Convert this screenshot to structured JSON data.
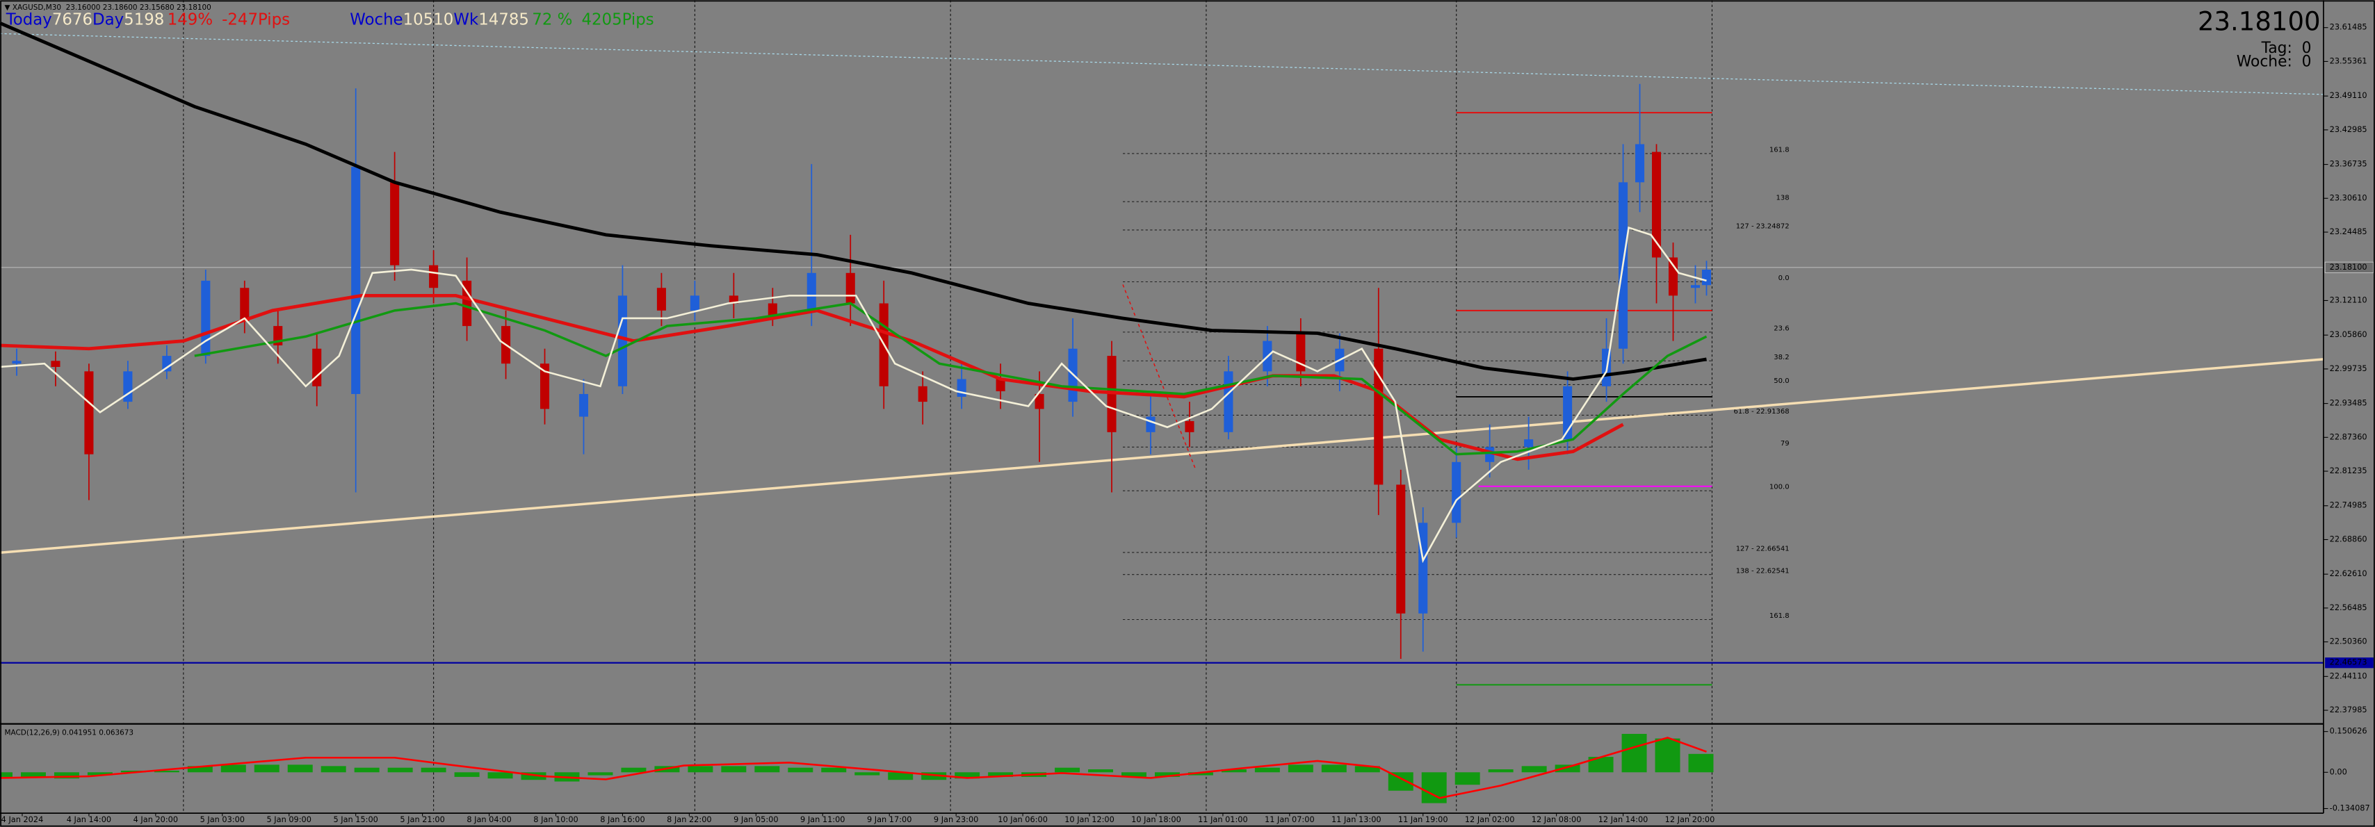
{
  "header": {
    "symbol_info": "▼ XAGUSD,M30  23.16000 23.18600 23.15680 23.18100",
    "today_label": "Today",
    "today_value": "7676",
    "day_label": "Day",
    "day_value": "5198",
    "day_pct": "149%",
    "day_pips": "-247Pips",
    "week_label": "Woche",
    "week_value": "10510",
    "wk_label": "Wk",
    "wk_value": "14785",
    "wk_pct": "72 %",
    "wk_pips": "4205Pips"
  },
  "info_box": {
    "price": "23.18100",
    "day": "Tag:  0",
    "week": "Woche:  0"
  },
  "chart_data": {
    "type": "candlestick",
    "xlim": [
      0,
      418
    ],
    "ylim": [
      22.358,
      23.659
    ],
    "xticks": [
      {
        "value": 4,
        "label": "4 Jan 2024"
      },
      {
        "value": 16,
        "label": "4 Jan 14:00"
      },
      {
        "value": 28,
        "label": "4 Jan 20:00"
      },
      {
        "value": 40,
        "label": "5 Jan 03:00"
      },
      {
        "value": 52,
        "label": "5 Jan 09:00"
      },
      {
        "value": 64,
        "label": "5 Jan 15:00"
      },
      {
        "value": 76,
        "label": "5 Jan 21:00"
      },
      {
        "value": 88,
        "label": "8 Jan 04:00"
      },
      {
        "value": 100,
        "label": "8 Jan 10:00"
      },
      {
        "value": 112,
        "label": "8 Jan 16:00"
      },
      {
        "value": 124,
        "label": "8 Jan 22:00"
      },
      {
        "value": 136,
        "label": "9 Jan 05:00"
      },
      {
        "value": 148,
        "label": "9 Jan 11:00"
      },
      {
        "value": 160,
        "label": "9 Jan 17:00"
      },
      {
        "value": 172,
        "label": "9 Jan 23:00"
      },
      {
        "value": 184,
        "label": "10 Jan 06:00"
      },
      {
        "value": 196,
        "label": "10 Jan 12:00"
      },
      {
        "value": 208,
        "label": "10 Jan 18:00"
      },
      {
        "value": 220,
        "label": "11 Jan 01:00"
      },
      {
        "value": 232,
        "label": "11 Jan 07:00"
      },
      {
        "value": 244,
        "label": "11 Jan 13:00"
      },
      {
        "value": 256,
        "label": "11 Jan 19:00"
      },
      {
        "value": 268,
        "label": "12 Jan 02:00"
      },
      {
        "value": 280,
        "label": "12 Jan 08:00"
      },
      {
        "value": 292,
        "label": "12 Jan 14:00"
      },
      {
        "value": 304,
        "label": "12 Jan 20:00"
      }
    ],
    "yticks": [
      23.61485,
      23.55361,
      {
        "value": 23.4911,
        "label": "23.49110"
      },
      23.42985,
      23.36735,
      {
        "value": 23.3061,
        "label": "23.30610"
      },
      23.24485,
      {
        "value": 23.1211,
        "label": "23.12110"
      },
      {
        "value": 23.0586,
        "label": "23.05860"
      },
      22.99735,
      22.93485,
      {
        "value": 22.8736,
        "label": "22.87360"
      },
      22.81235,
      22.74985,
      {
        "value": 22.6886,
        "label": "22.68860"
      },
      {
        "value": 22.6261,
        "label": "22.62610"
      },
      22.56485,
      {
        "value": 22.5036,
        "label": "22.50360"
      },
      {
        "value": 22.4411,
        "label": "22.44110"
      },
      22.37985
    ],
    "vgrid": [
      33,
      78,
      125,
      171,
      217,
      262,
      308
    ],
    "up_color": "#1f5fd8",
    "down_color": "#c00000",
    "x": [
      3,
      10,
      16,
      23,
      30,
      37,
      44,
      50,
      57,
      64,
      71,
      78,
      84,
      91,
      98,
      105,
      112,
      119,
      125,
      132,
      139,
      146,
      153,
      159,
      166,
      173,
      180,
      187,
      193,
      200,
      207,
      214,
      221,
      228,
      234,
      241,
      248,
      252,
      256,
      262,
      268,
      275,
      282,
      289,
      292,
      295,
      298,
      301,
      305,
      307
    ],
    "open": [
      23.007,
      23.012,
      22.993,
      22.938,
      22.993,
      23.021,
      23.144,
      23.075,
      23.034,
      22.952,
      23.335,
      23.185,
      23.157,
      23.075,
      23.007,
      22.911,
      22.966,
      23.144,
      23.103,
      23.13,
      23.116,
      23.103,
      23.171,
      23.116,
      22.966,
      22.947,
      22.979,
      22.952,
      22.938,
      23.021,
      22.883,
      22.903,
      22.883,
      22.993,
      23.062,
      22.993,
      23.034,
      22.788,
      22.555,
      22.719,
      22.829,
      22.856,
      22.87,
      22.966,
      23.034,
      23.335,
      23.39,
      23.199,
      23.144,
      23.149
    ],
    "high": [
      23.034,
      23.029,
      23.007,
      23.012,
      23.04,
      23.177,
      23.157,
      23.103,
      23.062,
      23.505,
      23.39,
      23.212,
      23.199,
      23.103,
      23.034,
      22.979,
      23.185,
      23.171,
      23.157,
      23.171,
      23.144,
      23.368,
      23.24,
      23.157,
      22.993,
      23.007,
      23.007,
      22.993,
      23.089,
      23.048,
      22.952,
      22.938,
      23.021,
      23.075,
      23.089,
      23.062,
      23.144,
      22.815,
      22.747,
      22.856,
      22.897,
      22.911,
      22.993,
      23.089,
      23.404,
      23.513,
      23.404,
      23.226,
      23.185,
      23.193
    ],
    "low": [
      22.985,
      22.966,
      22.76,
      22.925,
      22.979,
      23.007,
      23.062,
      23.007,
      22.93,
      22.774,
      23.157,
      23.116,
      23.048,
      22.979,
      22.897,
      22.843,
      22.952,
      23.075,
      23.084,
      23.089,
      23.075,
      23.075,
      23.075,
      22.925,
      22.897,
      22.925,
      22.925,
      22.829,
      22.911,
      22.774,
      22.843,
      22.856,
      22.87,
      22.966,
      22.966,
      22.957,
      22.733,
      22.473,
      22.486,
      22.692,
      22.801,
      22.815,
      22.843,
      22.938,
      23.007,
      23.281,
      23.116,
      23.048,
      23.116,
      23.13
    ],
    "close": [
      23.012,
      23.001,
      22.843,
      22.993,
      23.021,
      23.157,
      23.084,
      23.04,
      22.966,
      23.363,
      23.185,
      23.144,
      23.075,
      23.007,
      22.925,
      22.952,
      23.13,
      23.103,
      23.13,
      23.116,
      23.089,
      23.171,
      23.116,
      22.966,
      22.938,
      22.979,
      22.957,
      22.925,
      23.034,
      22.883,
      22.911,
      22.883,
      22.993,
      23.048,
      22.993,
      23.034,
      22.788,
      22.555,
      22.719,
      22.829,
      22.856,
      22.87,
      22.966,
      23.034,
      23.335,
      23.404,
      23.199,
      23.13,
      23.149,
      23.177
    ],
    "lines": [
      {
        "color": "#000000",
        "width": 2.2,
        "x": [
          0,
          16,
          35,
          55,
          71,
          90,
          109,
          128,
          147,
          164,
          185,
          202,
          218,
          237,
          251,
          267,
          283,
          294,
          307
        ],
        "values": [
          23.623,
          23.554,
          23.472,
          23.404,
          23.335,
          23.281,
          23.24,
          23.22,
          23.204,
          23.171,
          23.116,
          23.089,
          23.067,
          23.062,
          23.034,
          22.999,
          22.979,
          22.993,
          23.015
        ]
      },
      {
        "color": "#e01010",
        "width": 2.2,
        "x": [
          0,
          16,
          33,
          49,
          65,
          82,
          98,
          114,
          131,
          147,
          164,
          180,
          196,
          213,
          229,
          240,
          248,
          259,
          273,
          283,
          292
        ],
        "values": [
          23.04,
          23.034,
          23.048,
          23.103,
          23.13,
          23.13,
          23.089,
          23.048,
          23.075,
          23.103,
          23.048,
          22.979,
          22.957,
          22.947,
          22.985,
          22.985,
          22.957,
          22.87,
          22.834,
          22.848,
          22.897
        ]
      },
      {
        "color": "#119911",
        "width": 1.6,
        "x": [
          35,
          55,
          71,
          82,
          98,
          109,
          120,
          136,
          153,
          169,
          191,
          213,
          229,
          245,
          262,
          273,
          283,
          292,
          300,
          307
        ],
        "values": [
          23.021,
          23.056,
          23.103,
          23.116,
          23.067,
          23.021,
          23.075,
          23.089,
          23.116,
          23.007,
          22.966,
          22.952,
          22.985,
          22.979,
          22.843,
          22.848,
          22.87,
          22.952,
          23.021,
          23.056
        ]
      },
      {
        "color": "#f4f0d8",
        "width": 1.2,
        "x": [
          0,
          8,
          18,
          27,
          37,
          44,
          55,
          61,
          67,
          74,
          82,
          90,
          98,
          108,
          112,
          120,
          131,
          142,
          154,
          161,
          172,
          185,
          191,
          199,
          210,
          218,
          229,
          237,
          245,
          251,
          256,
          262,
          270,
          281,
          289,
          293,
          297,
          302,
          307
        ],
        "values": [
          23.001,
          23.007,
          22.919,
          22.979,
          23.048,
          23.089,
          22.966,
          23.021,
          23.171,
          23.177,
          23.166,
          23.048,
          22.993,
          22.966,
          23.089,
          23.089,
          23.116,
          23.13,
          23.13,
          23.007,
          22.957,
          22.93,
          23.007,
          22.93,
          22.892,
          22.925,
          23.029,
          22.993,
          23.034,
          22.938,
          22.651,
          22.76,
          22.829,
          22.87,
          22.993,
          23.253,
          23.24,
          23.171,
          23.157
        ]
      }
    ],
    "trendlines": [
      {
        "color": "#f5deb3",
        "width": 1.6,
        "dash": "none",
        "x": [
          0,
          418
        ],
        "values": [
          22.665,
          23.015
        ]
      },
      {
        "color": "#a8d8e8",
        "width": 0.6,
        "dash": "1.5 1.5",
        "x": [
          0,
          418
        ],
        "values": [
          23.604,
          23.494
        ]
      },
      {
        "color": "#e01010",
        "width": 0.7,
        "dash": "2 2",
        "x": [
          202,
          215
        ],
        "values": [
          23.15,
          22.818
        ]
      }
    ],
    "hlines": [
      {
        "color": "#e01010",
        "x": [
          262,
          308
        ],
        "value": 23.461
      },
      {
        "color": "#e01010",
        "x": [
          262,
          308
        ],
        "value": 23.103
      },
      {
        "color": "#000000",
        "x": [
          262,
          308
        ],
        "value": 22.947
      },
      {
        "color": "#ff00ff",
        "x": [
          266,
          308
        ],
        "value": 22.785
      },
      {
        "color": "#119911",
        "x": [
          262,
          308
        ],
        "value": 22.426
      }
    ],
    "price_line": {
      "value": 23.181,
      "label": "23.18100"
    },
    "level_line": {
      "value": 22.46573,
      "label": "22.46573",
      "color": "#0000a0"
    },
    "fib": {
      "x": [
        202,
        308
      ],
      "levels": [
        {
          "text": "161.8",
          "price": 23.387
        },
        {
          "text": "138",
          "price": 23.3
        },
        {
          "text": "127 - 23.24872",
          "price": 23.24872
        },
        {
          "text": "0.0",
          "price": 23.155
        },
        {
          "text": "23.6",
          "price": 23.064
        },
        {
          "text": "38.2",
          "price": 23.012
        },
        {
          "text": "50.0",
          "price": 22.969
        },
        {
          "text": "61.8 - 22.91368",
          "price": 22.91368
        },
        {
          "text": "79",
          "price": 22.856
        },
        {
          "text": "100.0",
          "price": 22.777
        },
        {
          "text": "127 - 22.66541",
          "price": 22.66541
        },
        {
          "text": "138 - 22.62541",
          "price": 22.62541
        },
        {
          "text": "161.8",
          "price": 22.544
        }
      ]
    },
    "macd": {
      "title": "MACD(12,26,9) 0.041951 0.063673",
      "ylim": [
        -0.1512,
        0.1734
      ],
      "yticks": [
        0.150626,
        {
          "value": 0,
          "label": "0.00"
        },
        -0.134087
      ],
      "hist_color": "#119911",
      "signal_color": "#ff0000",
      "x": [
        0,
        6,
        12,
        18,
        24,
        30,
        36,
        42,
        48,
        54,
        60,
        66,
        72,
        78,
        84,
        90,
        96,
        102,
        108,
        114,
        120,
        126,
        132,
        138,
        144,
        150,
        156,
        162,
        168,
        174,
        180,
        186,
        192,
        198,
        204,
        210,
        216,
        222,
        228,
        234,
        240,
        246,
        252,
        258,
        264,
        270,
        276,
        282,
        288,
        294,
        300,
        306
      ],
      "histogram": [
        -0.017,
        -0.017,
        -0.023,
        -0.011,
        0.006,
        0.006,
        0.023,
        0.028,
        0.028,
        0.028,
        0.023,
        0.017,
        0.017,
        0.017,
        -0.017,
        -0.023,
        -0.028,
        -0.034,
        -0.011,
        0.017,
        0.023,
        0.023,
        0.023,
        0.023,
        0.017,
        0.017,
        -0.011,
        -0.028,
        -0.028,
        -0.023,
        -0.017,
        -0.017,
        0.017,
        0.011,
        -0.017,
        -0.017,
        -0.011,
        0.011,
        0.017,
        0.028,
        0.028,
        0.023,
        -0.068,
        -0.114,
        -0.046,
        0.011,
        0.023,
        0.028,
        0.057,
        0.142,
        0.125,
        0.068
      ],
      "signal": {
        "x": [
          0,
          16,
          35,
          55,
          71,
          82,
          98,
          109,
          123,
          142,
          158,
          174,
          191,
          207,
          223,
          237,
          248,
          259,
          270,
          283,
          294,
          300,
          307
        ],
        "values": [
          -0.021,
          -0.015,
          0.019,
          0.054,
          0.054,
          0.025,
          -0.015,
          -0.026,
          0.025,
          0.036,
          0.008,
          -0.021,
          -0.003,
          -0.021,
          0.014,
          0.042,
          0.019,
          -0.095,
          -0.049,
          0.025,
          0.093,
          0.128,
          0.076
        ]
      }
    }
  }
}
